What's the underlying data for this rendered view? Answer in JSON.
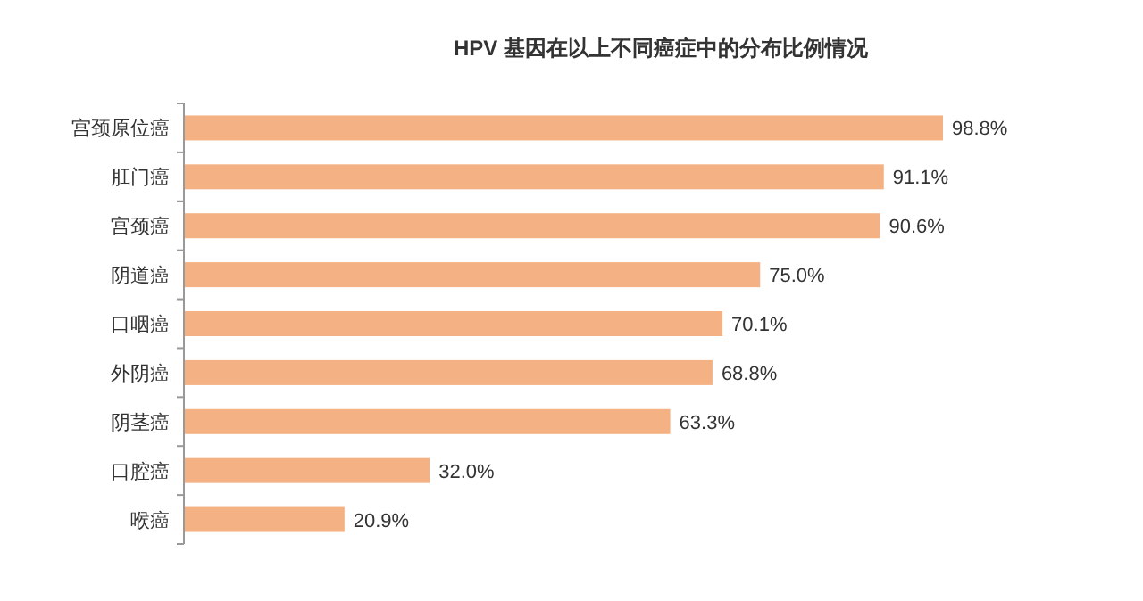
{
  "chart_data": {
    "type": "bar",
    "orientation": "horizontal",
    "title": "HPV 基因在以上不同癌症中的分布比例情况",
    "categories": [
      "宫颈原位癌",
      "肛门癌",
      "宫颈癌",
      "阴道癌",
      "口咽癌",
      "外阴癌",
      "阴茎癌",
      "口腔癌",
      "喉癌"
    ],
    "values": [
      98.8,
      91.1,
      90.6,
      75.0,
      70.1,
      68.8,
      63.3,
      32.0,
      20.9
    ],
    "value_labels": [
      "98.8%",
      "91.1%",
      "90.6%",
      "75.0%",
      "70.1%",
      "68.8%",
      "63.3%",
      "32.0%",
      "20.9%"
    ],
    "color": "#f4b183"
  }
}
